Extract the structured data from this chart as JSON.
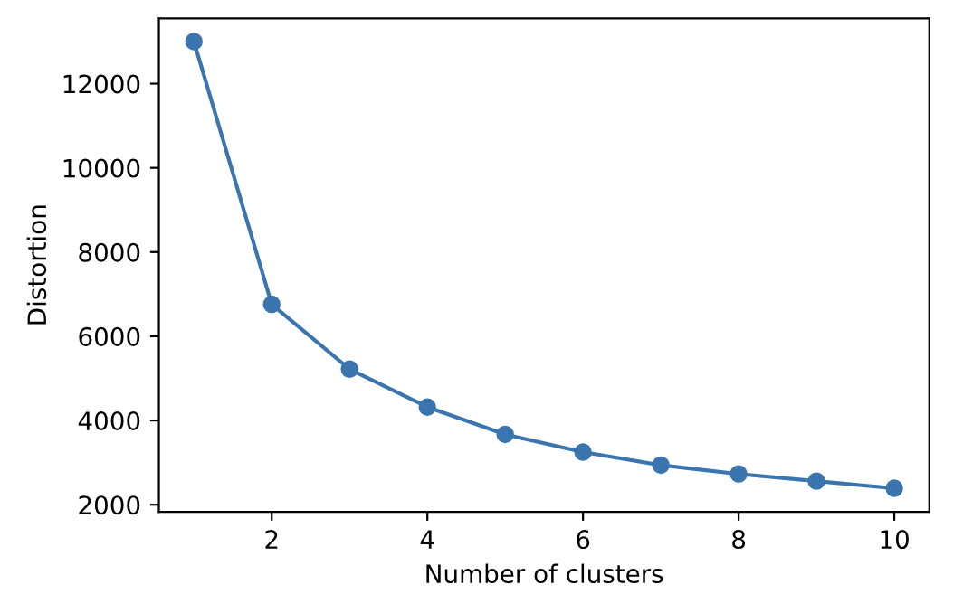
{
  "chart_data": {
    "type": "line",
    "xlabel": "Number of clusters",
    "ylabel": "Distortion",
    "x": [
      1,
      2,
      3,
      4,
      5,
      6,
      7,
      8,
      9,
      10
    ],
    "series": [
      {
        "color": "#3b75af",
        "values": [
          13000,
          6760,
          5220,
          4320,
          3670,
          3250,
          2940,
          2730,
          2560,
          2390
        ]
      }
    ],
    "marker": "circle",
    "line_style": "solid",
    "xlim": [
      0.55,
      10.45
    ],
    "xticks": [
      2,
      4,
      6,
      8,
      10
    ],
    "ylim": [
      1830,
      13550
    ],
    "yticks": [
      2000,
      4000,
      6000,
      8000,
      10000,
      12000
    ],
    "grid": false,
    "legend": false
  }
}
